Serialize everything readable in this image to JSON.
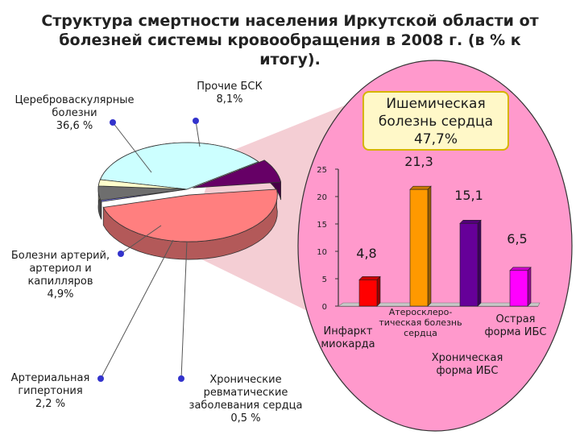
{
  "title_lines": [
    "Структура смертности населения Иркутской области от",
    "болезней системы кровообращения в 2008 г. (в % к",
    "итогу)."
  ],
  "colors": {
    "cerebrovascular": "#ccffff",
    "other": "#660066",
    "ischemic": "#ff7f7f",
    "arteries": "#6e6e6e",
    "hypertension": "#ffffcc",
    "rheumatic": "#8080ff",
    "bar_mi": "#ff0000",
    "bar_athero": "#ff9900",
    "bar_chronic": "#660099",
    "bar_acute": "#ff00ff",
    "oval": "#ff99cc"
  },
  "chart_data": [
    {
      "type": "pie",
      "slices": [
        {
          "label": "Цереброваскулярные болезни",
          "value": 36.6,
          "text": [
            "Цереброваскулярные",
            "болезни",
            "36,6 %"
          ]
        },
        {
          "label": "Прочие БСК",
          "value": 8.1,
          "text": [
            "Прочие БСК",
            "8,1%"
          ]
        },
        {
          "label": "Ишемическая болезнь сердца",
          "value": 47.7,
          "text": [
            "Ишемическая",
            "болезнь сердца",
            "47,7%"
          ]
        },
        {
          "label": "Хронические ревматические заболевания сердца",
          "value": 0.5,
          "text": [
            "Хронические",
            "ревматические",
            "заболевания сердца",
            "0,5 %"
          ]
        },
        {
          "label": "Болезни артерий, артериол и капилляров",
          "value": 4.9,
          "text": [
            "Болезни артерий,",
            "артериол и",
            "капилляров",
            "4,9%"
          ]
        },
        {
          "label": "Артериальная гипертония",
          "value": 2.2,
          "text": [
            "Артериальная",
            "гипертония",
            "2,2 %"
          ]
        }
      ]
    },
    {
      "type": "bar",
      "categories": [
        "Инфаркт миокарда",
        "Атеросклеротическая болезнь сердца",
        "Хроническая форма ИБС",
        "Острая форма ИБС"
      ],
      "category_text": [
        [
          "Инфаркт",
          "миокарда"
        ],
        [
          "Атеросклеро-",
          "тическая болезнь",
          "сердца"
        ],
        [
          "Хроническая",
          "форма ИБС"
        ],
        [
          "Острая",
          "форма ИБС"
        ]
      ],
      "values": [
        4.8,
        21.3,
        15.1,
        6.5
      ],
      "value_labels": [
        "4,8",
        "21,3",
        "15,1",
        "6,5"
      ],
      "ylim": [
        0,
        25
      ],
      "yticks": [
        "0",
        "5",
        "10",
        "15",
        "20",
        "25"
      ],
      "grid": false
    }
  ]
}
